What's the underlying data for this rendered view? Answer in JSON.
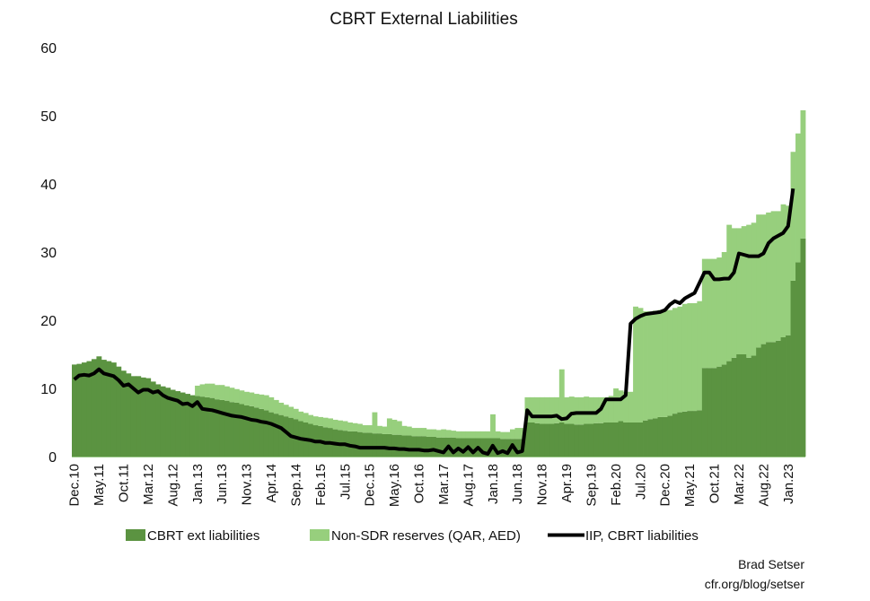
{
  "chart_data": {
    "type": "bar",
    "title": "CBRT External Liabilities",
    "xlabel": "",
    "ylabel": "",
    "ylim": [
      0,
      60
    ],
    "yticks": [
      0,
      10,
      20,
      30,
      40,
      50,
      60
    ],
    "grid": false,
    "legend_position": "bottom",
    "period": "monthly, Dec.10 to Apr.23",
    "tick_labels": [
      "Dec.10",
      "May.11",
      "Oct.11",
      "Mar.12",
      "Aug.12",
      "Jan.13",
      "Jun.13",
      "Nov.13",
      "Apr.14",
      "Sep.14",
      "Feb.15",
      "Jul.15",
      "Dec.15",
      "May.16",
      "Oct.16",
      "Mar.17",
      "Aug.17",
      "Jan.18",
      "Jun.18",
      "Nov.18",
      "Apr.19",
      "Sep.19",
      "Feb.20",
      "Jul.20",
      "Dec.20",
      "May.21",
      "Oct.21",
      "Mar.22",
      "Aug.22",
      "Jan.23"
    ],
    "tick_every_months": 5,
    "series": [
      {
        "name": "CBRT ext liabilities",
        "kind": "stacked-bar",
        "color": "#5b9341",
        "values": [
          13.5,
          13.6,
          13.8,
          14.0,
          14.3,
          14.7,
          14.2,
          14.0,
          13.8,
          13.2,
          12.6,
          12.2,
          11.8,
          11.8,
          11.6,
          11.5,
          11.0,
          10.6,
          10.3,
          10.1,
          9.8,
          9.6,
          9.4,
          9.2,
          9.0,
          8.9,
          8.8,
          8.7,
          8.6,
          8.4,
          8.3,
          8.2,
          8.0,
          7.9,
          7.7,
          7.5,
          7.4,
          7.2,
          7.0,
          6.8,
          6.5,
          6.3,
          6.1,
          5.9,
          5.7,
          5.5,
          5.2,
          5.0,
          4.8,
          4.6,
          4.5,
          4.3,
          4.2,
          4.0,
          3.9,
          3.8,
          3.7,
          3.7,
          3.6,
          3.5,
          3.5,
          3.4,
          3.4,
          3.3,
          3.3,
          3.2,
          3.2,
          3.1,
          3.1,
          3.0,
          3.0,
          3.0,
          2.9,
          2.9,
          2.8,
          2.8,
          2.8,
          2.8,
          2.7,
          2.7,
          2.7,
          2.7,
          2.7,
          2.7,
          2.7,
          2.7,
          2.7,
          2.6,
          2.6,
          2.6,
          2.6,
          2.6,
          5.0,
          5.0,
          4.9,
          4.8,
          4.8,
          4.8,
          4.9,
          5.0,
          4.8,
          4.8,
          4.7,
          4.7,
          4.8,
          4.8,
          4.9,
          4.9,
          5.0,
          5.0,
          5.0,
          5.2,
          5.0,
          5.0,
          5.0,
          5.0,
          5.3,
          5.5,
          5.6,
          5.8,
          5.8,
          6.0,
          6.3,
          6.5,
          6.6,
          6.7,
          6.7,
          6.8,
          13.0,
          13.0,
          13.0,
          13.2,
          13.5,
          14.0,
          14.5,
          15.0,
          15.0,
          14.5,
          14.8,
          16.0,
          16.5,
          16.8,
          16.8,
          17.0,
          17.5,
          17.8,
          25.8,
          28.5,
          32.0
        ]
      },
      {
        "name": "Non-SDR reserves (QAR, AED)",
        "kind": "stacked-bar",
        "color": "#97cf7d",
        "values": [
          0,
          0,
          0,
          0,
          0,
          0,
          0,
          0,
          0,
          0,
          0,
          0,
          0,
          0,
          0,
          0,
          0,
          0,
          0,
          0,
          0,
          0,
          0,
          0,
          0,
          1.5,
          1.8,
          2.0,
          2.1,
          2.1,
          2.2,
          2.1,
          2.1,
          2.0,
          2.0,
          2.0,
          2.0,
          2.0,
          2.1,
          2.2,
          2.2,
          2.0,
          1.8,
          1.7,
          1.6,
          1.5,
          1.4,
          1.4,
          1.3,
          1.3,
          1.3,
          1.4,
          1.4,
          1.4,
          1.4,
          1.4,
          1.3,
          1.2,
          1.2,
          1.1,
          1.1,
          3.1,
          1.1,
          1.1,
          2.3,
          2.2,
          2.0,
          1.4,
          1.3,
          1.2,
          1.2,
          1.2,
          1.1,
          1.1,
          1.1,
          1.2,
          1.1,
          1.0,
          1.0,
          1.0,
          1.0,
          1.0,
          1.0,
          1.0,
          1.0,
          3.5,
          1.0,
          1.0,
          1.0,
          1.4,
          1.6,
          1.6,
          3.7,
          3.7,
          3.8,
          3.9,
          3.9,
          3.9,
          3.8,
          7.8,
          3.9,
          4.0,
          4.0,
          4.0,
          4.0,
          3.9,
          3.8,
          3.8,
          3.7,
          3.9,
          5.0,
          4.5,
          4.5,
          4.5,
          17.0,
          16.8,
          16.0,
          15.8,
          15.8,
          15.7,
          15.7,
          15.5,
          15.5,
          15.5,
          15.8,
          15.8,
          15.8,
          16.0,
          16.0,
          16.0,
          16.0,
          16.0,
          16.5,
          20.0,
          19.0,
          18.5,
          18.8,
          19.5,
          19.5,
          19.5,
          19.0,
          19.0,
          19.2,
          19.0,
          19.5,
          19.0,
          18.9,
          18.9,
          18.8
        ]
      },
      {
        "name": "IIP, CBRT liabilities",
        "kind": "line",
        "color": "#000000",
        "values": [
          11.3,
          11.9,
          12.0,
          11.9,
          12.2,
          12.8,
          12.2,
          12.0,
          11.8,
          11.2,
          10.4,
          10.6,
          10.0,
          9.4,
          9.8,
          9.8,
          9.4,
          9.6,
          9.0,
          8.6,
          8.4,
          8.2,
          7.7,
          7.8,
          7.4,
          8.0,
          7.0,
          6.9,
          6.8,
          6.6,
          6.4,
          6.2,
          6.0,
          5.9,
          5.8,
          5.6,
          5.4,
          5.3,
          5.1,
          5.0,
          4.8,
          4.5,
          4.2,
          3.6,
          3.0,
          2.8,
          2.6,
          2.5,
          2.4,
          2.2,
          2.2,
          2.0,
          2.0,
          1.9,
          1.8,
          1.8,
          1.6,
          1.5,
          1.3,
          1.3,
          1.3,
          1.3,
          1.3,
          1.3,
          1.2,
          1.2,
          1.1,
          1.1,
          1.0,
          1.0,
          1.0,
          0.9,
          0.9,
          1.0,
          0.8,
          0.6,
          1.5,
          0.6,
          1.2,
          0.7,
          1.4,
          0.6,
          1.3,
          0.6,
          0.4,
          1.6,
          0.5,
          0.8,
          0.5,
          1.7,
          0.6,
          0.8,
          6.8,
          5.9,
          5.9,
          5.9,
          5.9,
          5.9,
          6.0,
          5.5,
          5.6,
          6.3,
          6.4,
          6.4,
          6.4,
          6.4,
          6.4,
          7.0,
          8.4,
          8.4,
          8.4,
          8.4,
          9.0,
          19.5,
          20.2,
          20.6,
          20.9,
          21.0,
          21.1,
          21.2,
          21.5,
          22.3,
          22.8,
          22.5,
          23.2,
          23.6,
          24.0,
          25.5,
          27.0,
          27.0,
          26.0,
          26.0,
          26.1,
          26.1,
          27.0,
          29.8,
          29.6,
          29.4,
          29.4,
          29.4,
          29.8,
          31.3,
          32.0,
          32.4,
          32.8,
          33.8,
          39.3,
          null,
          null
        ]
      }
    ]
  },
  "credits": {
    "author": "Brad Setser",
    "source": "cfr.org/blog/setser"
  }
}
